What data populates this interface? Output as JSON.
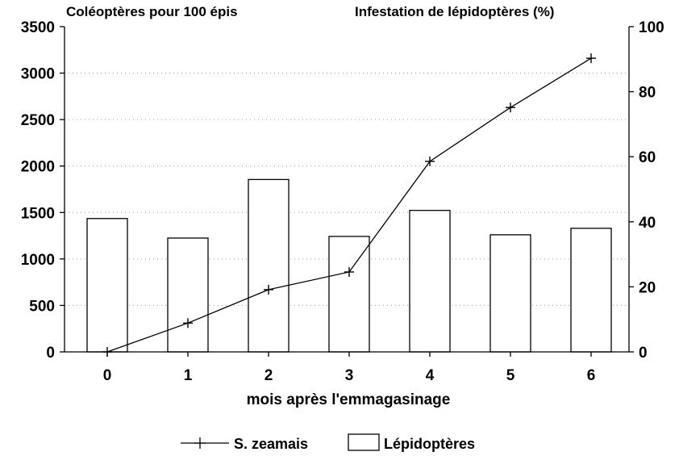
{
  "chart_data": {
    "type": "bar",
    "categories": [
      "0",
      "1",
      "2",
      "3",
      "4",
      "5",
      "6"
    ],
    "xlabel": "mois après l'emmagasinage",
    "y_left": {
      "label": "Coléoptères pour 100 épis",
      "range": [
        0,
        3500
      ],
      "ticks": [
        "0",
        "500",
        "1000",
        "1500",
        "2000",
        "2500",
        "3000",
        "3500"
      ]
    },
    "y_right": {
      "label": "Infestation de lépidoptères (%)",
      "range": [
        0,
        100
      ],
      "ticks": [
        "0",
        "20",
        "40",
        "60",
        "80",
        "100"
      ]
    },
    "grid": "dotted",
    "series": [
      {
        "name": "S. zeamais",
        "kind": "line",
        "marker": "plus",
        "axis": "left",
        "values": [
          0,
          310,
          670,
          860,
          2050,
          2630,
          3160
        ]
      },
      {
        "name": "Lépidoptères",
        "kind": "bar",
        "axis": "right",
        "values": [
          41,
          35,
          53,
          35.5,
          43.5,
          36,
          38
        ]
      }
    ],
    "legend": {
      "position": "bottom",
      "entries": [
        "S. zeamais",
        "Lépidoptères"
      ]
    },
    "colors": {
      "ink": "#000000",
      "bar_fill": "#ffffff",
      "background": "#ffffff"
    }
  }
}
